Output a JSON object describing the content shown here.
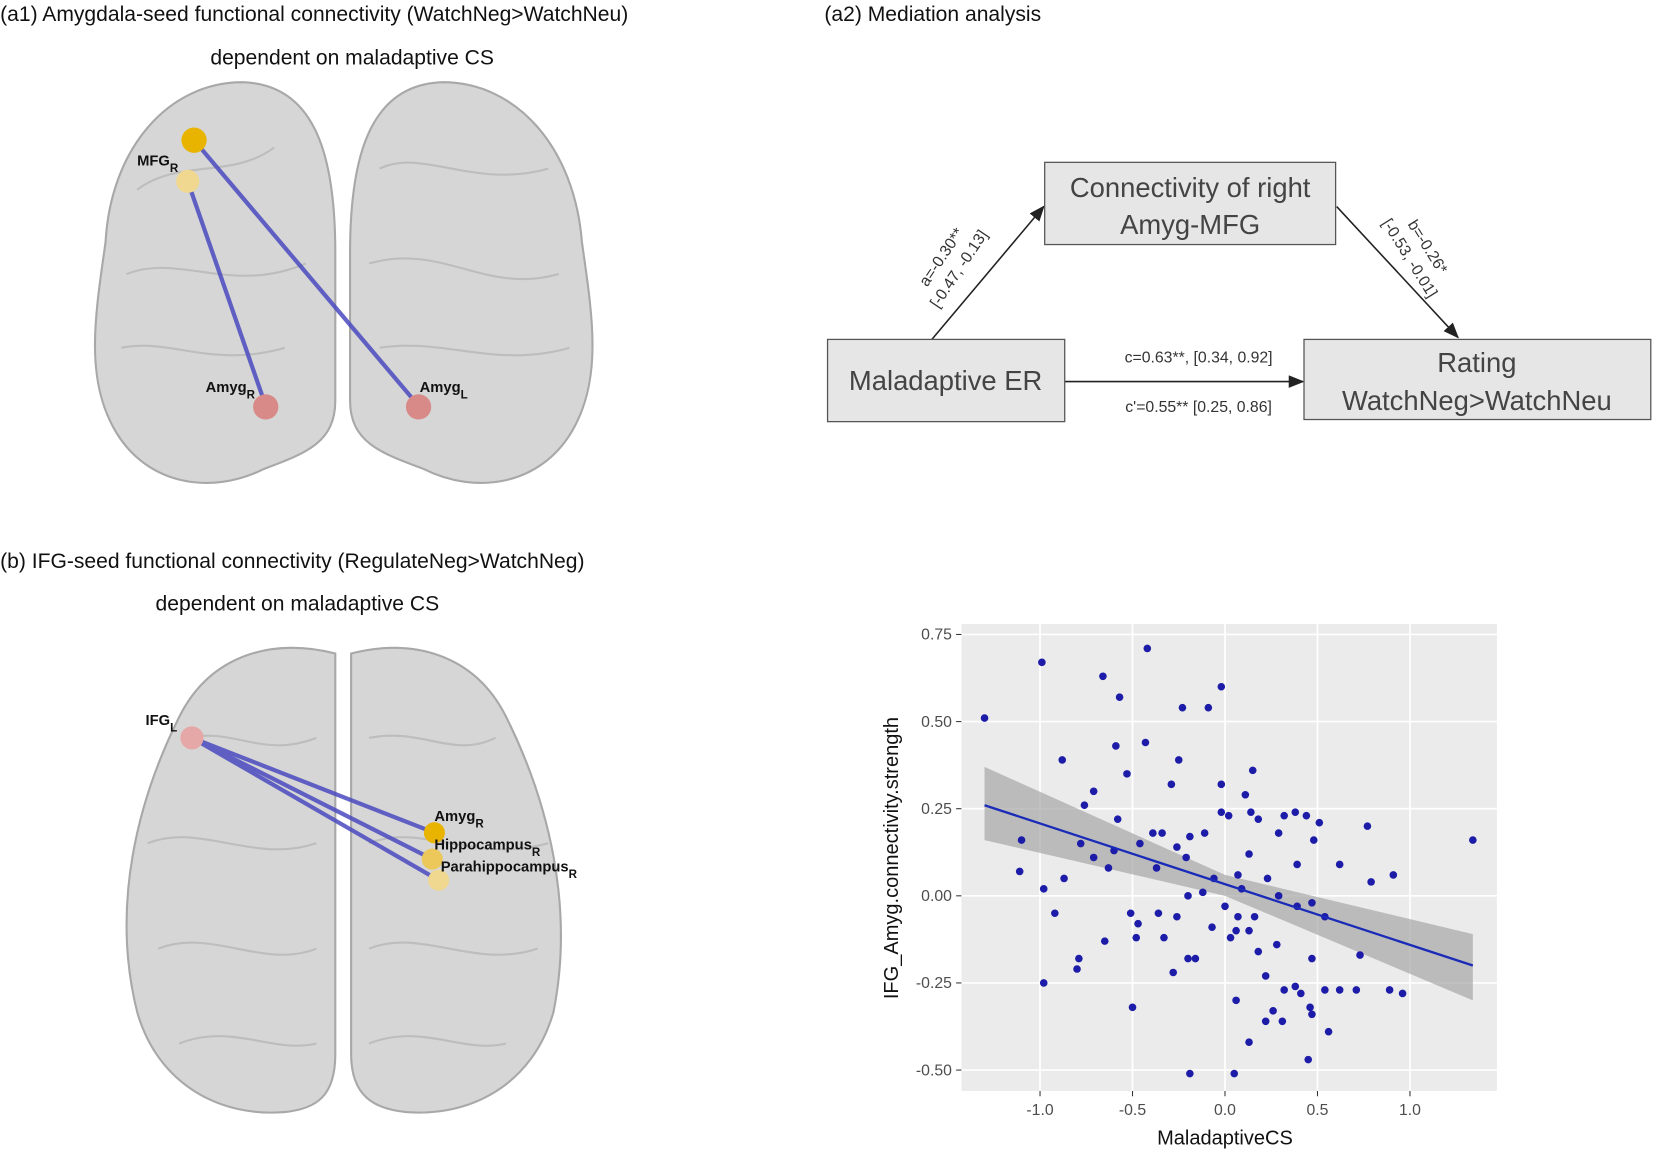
{
  "panels": {
    "a1": {
      "title": "(a1) Amygdala-seed functional connectivity (WatchNeg>WatchNeu)",
      "subtitle": "dependent on maladaptive CS",
      "labels": [
        {
          "text": "MFG",
          "sub": "R"
        },
        {
          "text": "Amyg",
          "sub": "R"
        },
        {
          "text": "Amyg",
          "sub": "L"
        }
      ]
    },
    "a2": {
      "title": "(a2) Mediation analysis",
      "nodes": [
        {
          "lines": [
            "Connectivity of right",
            "Amyg-MFG"
          ]
        },
        {
          "lines": [
            "Maladaptive ER"
          ]
        },
        {
          "lines": [
            "Rating",
            "WatchNeg>WatchNeu"
          ]
        }
      ],
      "paths": {
        "a": [
          "a=-0.30**",
          "[-0.47, -0.13]"
        ],
        "b": [
          "b=-0.26*",
          "[-0.53, -0.01]"
        ],
        "c": "c=0.63**, [0.34, 0.92]",
        "c_prime": "c'=0.55** [0.25, 0.86]"
      }
    },
    "b": {
      "title": "(b) IFG-seed functional connectivity (RegulateNeg>WatchNeg)",
      "subtitle": "dependent on maladaptive CS",
      "labels": [
        {
          "text": "IFG",
          "sub": "L"
        },
        {
          "text": "Amyg",
          "sub": "R"
        },
        {
          "text": "Hippocampus",
          "sub": "R"
        },
        {
          "text": "Parahippocampus",
          "sub": "R"
        }
      ]
    }
  },
  "chart_data": {
    "type": "scatter",
    "x_label": "MaladaptiveCS",
    "y_label": "IFG_Amyg.connectivity.strength",
    "color": "#1c1ca8",
    "fit_color": "#1a2bb8",
    "band_color": "#a6a6a6",
    "grid": true,
    "xlim": [
      -1.425,
      1.47
    ],
    "ylim": [
      -0.56,
      0.78
    ],
    "xticks": [
      {
        "value": -1,
        "label": "-1.0"
      },
      -0.5,
      {
        "value": 0,
        "label": "0.0"
      },
      0.5,
      {
        "value": 1,
        "label": "1.0"
      }
    ],
    "yticks": [
      0.75,
      {
        "value": 0.5,
        "label": "0.50"
      },
      0.25,
      {
        "value": 0,
        "label": "0.00"
      },
      -0.25,
      {
        "value": -0.5,
        "label": "-0.50"
      }
    ],
    "x": [
      -1.3,
      -0.99,
      -0.42,
      -0.66,
      -0.57,
      -0.23,
      -0.09,
      -0.02,
      -0.88,
      -0.59,
      -0.43,
      -0.71,
      -0.53,
      -0.25,
      -0.29,
      -0.02,
      0.15,
      0.11,
      -0.02,
      0.02,
      -0.76,
      -0.58,
      -0.39,
      -0.34,
      -0.19,
      0.14,
      0.18,
      0.32,
      0.38,
      0.44,
      0.51,
      0.77,
      1.34,
      -1.1,
      -0.78,
      -0.6,
      -0.46,
      -0.26,
      -0.11,
      0.13,
      0.29,
      0.48,
      -0.71,
      -0.63,
      -0.37,
      -0.21,
      -0.06,
      0.07,
      0.23,
      0.39,
      0.62,
      0.91,
      -1.11,
      -0.87,
      -0.98,
      -0.2,
      -0.12,
      0.09,
      0.29,
      0.47,
      0.79,
      -0.92,
      -0.51,
      -0.36,
      -0.26,
      0.0,
      0.07,
      0.16,
      0.39,
      0.54,
      -0.47,
      -0.33,
      -0.07,
      0.06,
      0.13,
      -0.48,
      -0.65,
      0.03,
      0.28,
      0.73,
      -0.79,
      -0.2,
      -0.16,
      0.18,
      0.47,
      -0.8,
      -0.28,
      0.22,
      0.38,
      -0.98,
      0.54,
      0.62,
      0.89,
      0.96,
      0.71,
      0.32,
      0.41,
      0.06,
      0.26,
      0.31,
      0.22,
      0.46,
      0.47,
      0.56,
      -0.5,
      0.13,
      0.45,
      -0.19,
      0.05
    ],
    "values": [
      0.51,
      0.67,
      0.71,
      0.63,
      0.57,
      0.54,
      0.54,
      0.6,
      0.39,
      0.43,
      0.44,
      0.3,
      0.35,
      0.39,
      0.32,
      0.32,
      0.36,
      0.29,
      0.24,
      0.23,
      0.26,
      0.22,
      0.18,
      0.18,
      0.17,
      0.24,
      0.22,
      0.23,
      0.24,
      0.23,
      0.21,
      0.2,
      0.16,
      0.16,
      0.15,
      0.13,
      0.15,
      0.14,
      0.18,
      0.12,
      0.18,
      0.16,
      0.11,
      0.08,
      0.08,
      0.11,
      0.05,
      0.06,
      0.05,
      0.09,
      0.09,
      0.06,
      0.07,
      0.05,
      0.02,
      0.0,
      0.01,
      0.02,
      0.0,
      -0.02,
      0.04,
      -0.05,
      -0.05,
      -0.05,
      -0.06,
      -0.03,
      -0.06,
      -0.06,
      -0.03,
      -0.06,
      -0.08,
      -0.12,
      -0.09,
      -0.1,
      -0.1,
      -0.12,
      -0.13,
      -0.12,
      -0.14,
      -0.17,
      -0.18,
      -0.18,
      -0.18,
      -0.16,
      -0.18,
      -0.21,
      -0.22,
      -0.23,
      -0.26,
      -0.25,
      -0.27,
      -0.27,
      -0.27,
      -0.28,
      -0.27,
      -0.27,
      -0.28,
      -0.3,
      -0.33,
      -0.36,
      -0.36,
      -0.32,
      -0.34,
      -0.39,
      -0.32,
      -0.42,
      -0.47,
      -0.51,
      -0.51
    ],
    "fit": {
      "x": [
        -1.3,
        1.34
      ],
      "values": [
        0.26,
        -0.2
      ]
    },
    "band": {
      "x": [
        -1.3,
        0,
        1.34
      ],
      "upper": [
        0.37,
        0.06,
        -0.11
      ],
      "lower": [
        0.16,
        0.0,
        -0.3
      ]
    }
  }
}
